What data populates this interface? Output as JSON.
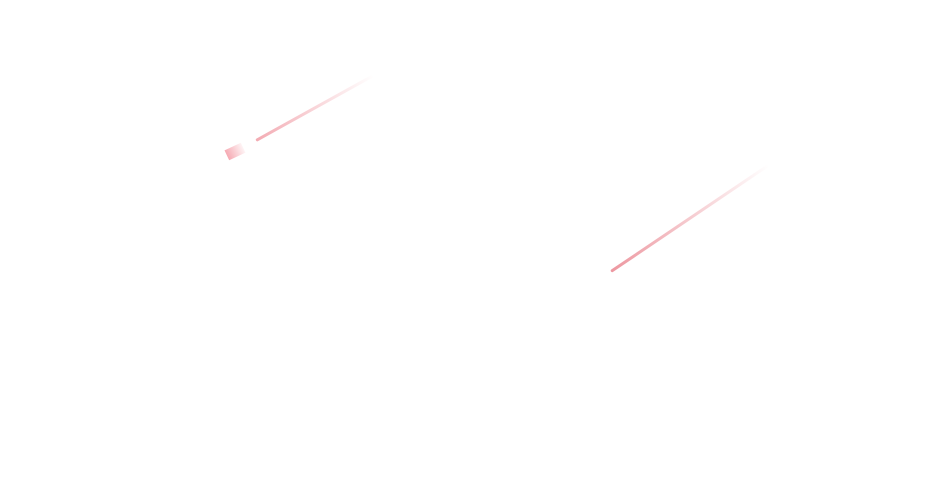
{
  "background": "#ffffff",
  "decorations": [
    {
      "kind": "meteor-streak",
      "color": "#f0a0aa"
    },
    {
      "kind": "meteor-streak",
      "color": "#eb8c96"
    }
  ]
}
